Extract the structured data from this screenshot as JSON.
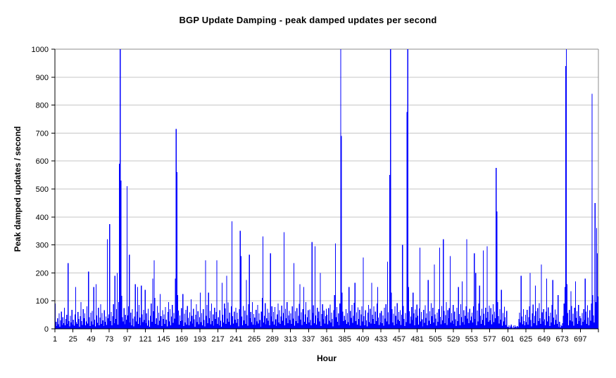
{
  "chart_data": {
    "type": "bar",
    "title": "BGP Update Damping - peak damped updates per second",
    "xlabel": "Hour",
    "ylabel": "Peak damped updates / second",
    "ylim": [
      0,
      1000
    ],
    "y_tick_interval": 100,
    "y_tick_labels": [
      0,
      100,
      200,
      300,
      400,
      500,
      600,
      700,
      800,
      900,
      1000
    ],
    "x_tick_interval": 24,
    "x_tick_labels": [
      1,
      25,
      49,
      73,
      97,
      121,
      145,
      169,
      193,
      217,
      241,
      265,
      289,
      313,
      337,
      361,
      385,
      409,
      433,
      457,
      481,
      505,
      529,
      553,
      577,
      601,
      625,
      649,
      673,
      697
    ],
    "x_start_hour": 1,
    "hours_total": 720,
    "grid": "horizontal",
    "legend": "none",
    "bar_color": "#0000ff",
    "gridline_color": "#c6c6c6",
    "border_color": "#8c8c8c",
    "axis_color": "#000000",
    "values": [
      90,
      25,
      10,
      38,
      16,
      55,
      8,
      30,
      62,
      14,
      42,
      20,
      75,
      12,
      35,
      50,
      18,
      235,
      28,
      9,
      46,
      22,
      68,
      15,
      33,
      11,
      52,
      150,
      24,
      17,
      60,
      35,
      8,
      45,
      95,
      28,
      14,
      70,
      38,
      55,
      12,
      26,
      80,
      19,
      205,
      42,
      10,
      58,
      27,
      64,
      15,
      150,
      33,
      9,
      160,
      48,
      21,
      76,
      12,
      40,
      88,
      18,
      56,
      30,
      10,
      67,
      25,
      44,
      14,
      320,
      38,
      52,
      375,
      28,
      60,
      12,
      45,
      88,
      20,
      190,
      35,
      70,
      200,
      15,
      95,
      590,
      1000,
      530,
      118,
      42,
      26,
      74,
      16,
      50,
      33,
      510,
      48,
      80,
      265,
      22,
      58,
      13,
      70,
      36,
      9,
      44,
      160,
      27,
      62,
      150,
      18,
      85,
      40,
      12,
      155,
      52,
      24,
      68,
      31,
      140,
      20,
      55,
      11,
      72,
      30,
      8,
      47,
      90,
      25,
      180,
      63,
      245,
      110,
      17,
      38,
      82,
      14,
      58,
      29,
      125,
      45,
      10,
      66,
      35,
      52,
      18,
      78,
      33,
      9,
      60,
      95,
      26,
      70,
      12,
      44,
      85,
      21,
      57,
      36,
      180,
      715,
      560,
      120,
      65,
      15,
      48,
      28,
      74,
      30,
      125,
      10,
      54,
      23,
      68,
      15,
      82,
      39,
      12,
      59,
      27,
      105,
      46,
      19,
      72,
      34,
      8,
      50,
      88,
      24,
      63,
      16,
      41,
      130,
      24,
      57,
      13,
      70,
      31,
      9,
      245,
      46,
      85,
      20,
      130,
      38,
      64,
      16,
      90,
      28,
      52,
      11,
      75,
      35,
      60,
      245,
      18,
      42,
      12,
      66,
      29,
      8,
      165,
      50,
      22,
      90,
      73,
      17,
      190,
      36,
      94,
      25,
      58,
      14,
      80,
      385,
      45,
      19,
      62,
      33,
      76,
      21,
      58,
      35,
      9,
      70,
      350,
      260,
      44,
      13,
      82,
      30,
      65,
      17,
      175,
      49,
      11,
      88,
      265,
      38,
      60,
      24,
      96,
      15,
      53,
      40,
      14,
      68,
      27,
      85,
      19,
      55,
      32,
      8,
      62,
      110,
      330,
      23,
      47,
      92,
      16,
      38,
      71,
      29,
      58,
      12,
      270,
      44,
      80,
      26,
      60,
      15,
      78,
      34,
      10,
      52,
      90,
      22,
      66,
      18,
      44,
      83,
      29,
      57,
      345,
      13,
      72,
      38,
      95,
      20,
      48,
      64,
      31,
      55,
      17,
      80,
      36,
      235,
      11,
      63,
      28,
      74,
      20,
      46,
      89,
      160,
      33,
      59,
      14,
      70,
      150,
      25,
      52,
      95,
      18,
      42,
      67,
      23,
      69,
      31,
      12,
      310,
      57,
      84,
      20,
      295,
      48,
      15,
      76,
      38,
      61,
      27,
      200,
      10,
      53,
      88,
      34,
      65,
      19,
      45,
      72,
      50,
      16,
      74,
      29,
      87,
      22,
      58,
      35,
      9,
      66,
      120,
      305,
      41,
      78,
      25,
      55,
      13,
      90,
      1000,
      690,
      130,
      62,
      28,
      46,
      32,
      70,
      18,
      56,
      24,
      150,
      12,
      64,
      39,
      85,
      21,
      47,
      93,
      165,
      28,
      59,
      15,
      77,
      35,
      68,
      11,
      52,
      80,
      26,
      255,
      45,
      13,
      67,
      30,
      9,
      58,
      86,
      24,
      72,
      19,
      165,
      50,
      35,
      80,
      17,
      62,
      28,
      91,
      150,
      40,
      14,
      56,
      22,
      64,
      20,
      48,
      11,
      75,
      37,
      88,
      26,
      240,
      59,
      16,
      550,
      1000,
      130,
      70,
      23,
      54,
      12,
      81,
      46,
      18,
      92,
      33,
      60,
      28,
      66,
      14,
      50,
      300,
      82,
      35,
      10,
      57,
      24,
      775,
      1000,
      150,
      63,
      19,
      44,
      78,
      31,
      130,
      55,
      12,
      69,
      40,
      87,
      47,
      15,
      73,
      290,
      26,
      60,
      34,
      9,
      68,
      21,
      84,
      39,
      55,
      12,
      175,
      29,
      63,
      17,
      92,
      45,
      76,
      23,
      230,
      51,
      36,
      11,
      58,
      25,
      70,
      290,
      43,
      16,
      82,
      30,
      320,
      64,
      20,
      49,
      95,
      14,
      67,
      38,
      74,
      260,
      22,
      56,
      29,
      85,
      18,
      62,
      34,
      10,
      76,
      28,
      150,
      53,
      13,
      88,
      41,
      170,
      24,
      66,
      15,
      47,
      81,
      320,
      37,
      59,
      20,
      72,
      30,
      44,
      58,
      22,
      80,
      270,
      35,
      200,
      12,
      65,
      27,
      90,
      155,
      46,
      17,
      71,
      32,
      280,
      54,
      13,
      76,
      39,
      295,
      60,
      25,
      83,
      30,
      74,
      16,
      52,
      88,
      24,
      61,
      38,
      575,
      420,
      95,
      45,
      19,
      70,
      33,
      140,
      11,
      57,
      26,
      79,
      42,
      14,
      64,
      8,
      6,
      12,
      4,
      9,
      15,
      7,
      3,
      11,
      5,
      13,
      8,
      4,
      10,
      6,
      35,
      58,
      22,
      190,
      44,
      16,
      70,
      28,
      12,
      50,
      24,
      68,
      15,
      42,
      80,
      200,
      31,
      9,
      55,
      87,
      20,
      46,
      155,
      63,
      13,
      74,
      28,
      92,
      38,
      17,
      230,
      59,
      26,
      70,
      34,
      12,
      61,
      180,
      27,
      77,
      45,
      10,
      58,
      23,
      86,
      175,
      40,
      15,
      69,
      32,
      52,
      18,
      120,
      8,
      25,
      5,
      14,
      10,
      20,
      47,
      90,
      150,
      940,
      1000,
      160,
      56,
      13,
      68,
      30,
      135,
      82,
      26,
      54,
      11,
      75,
      170,
      39,
      63,
      17,
      85,
      28,
      45,
      38,
      13,
      57,
      25,
      70,
      32,
      180,
      61,
      18,
      84,
      40,
      12,
      66,
      29,
      90,
      840,
      120,
      48,
      22,
      450,
      95,
      360,
      270,
      115
    ]
  }
}
